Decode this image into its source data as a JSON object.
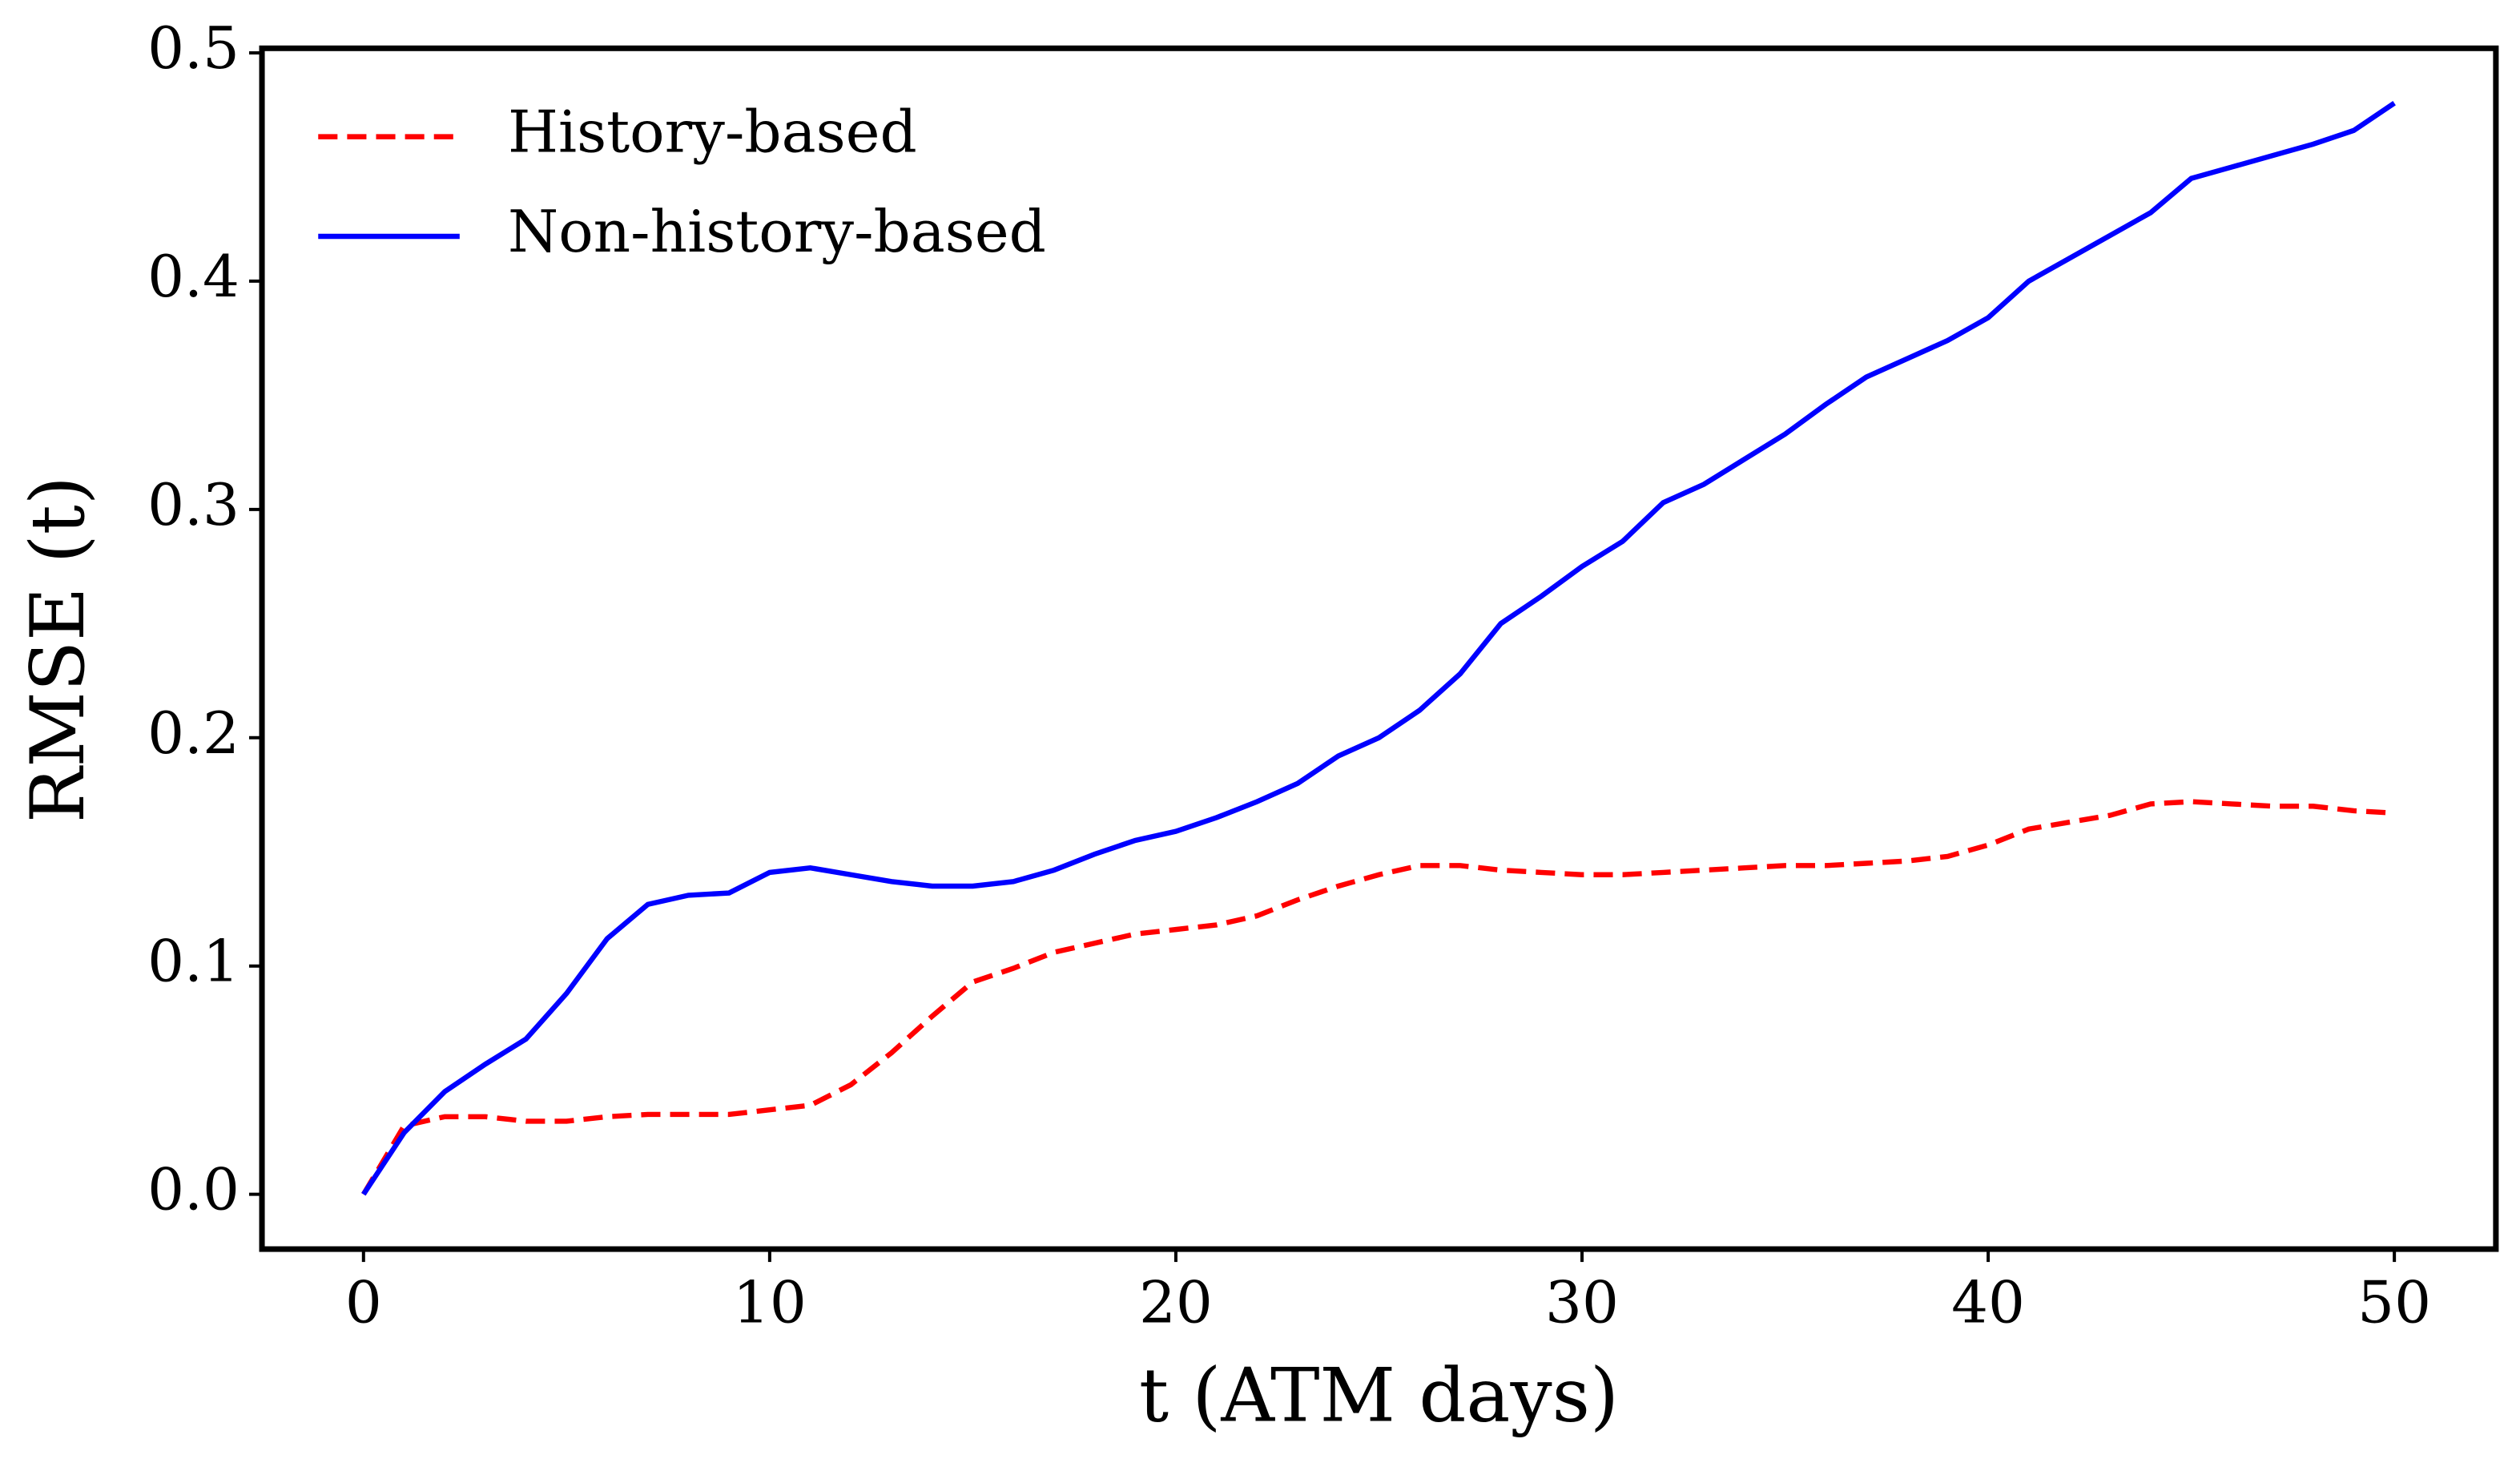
{
  "chart_data": {
    "type": "line",
    "xlabel": "t (ATM days)",
    "ylabel": "RMSE (t)",
    "x": [
      0,
      1,
      2,
      3,
      4,
      5,
      6,
      7,
      8,
      9,
      10,
      11,
      12,
      13,
      14,
      15,
      16,
      17,
      18,
      19,
      20,
      21,
      22,
      23,
      24,
      25,
      26,
      27,
      28,
      29,
      30,
      31,
      32,
      33,
      34,
      35,
      36,
      37,
      38,
      39,
      40,
      41,
      42,
      43,
      44,
      45,
      46,
      47,
      48,
      49,
      50
    ],
    "series": [
      {
        "name": "History-based",
        "color": "#ff0000",
        "dash": "dashed",
        "values": [
          0,
          0.03,
          0.034,
          0.034,
          0.032,
          0.032,
          0.034,
          0.035,
          0.035,
          0.035,
          0.037,
          0.039,
          0.048,
          0.062,
          0.078,
          0.093,
          0.099,
          0.106,
          0.11,
          0.114,
          0.116,
          0.118,
          0.122,
          0.129,
          0.135,
          0.14,
          0.144,
          0.144,
          0.142,
          0.141,
          0.14,
          0.14,
          0.141,
          0.142,
          0.143,
          0.144,
          0.144,
          0.145,
          0.146,
          0.148,
          0.153,
          0.16,
          0.163,
          0.166,
          0.171,
          0.172,
          0.171,
          0.17,
          0.17,
          0.168,
          0.167
        ]
      },
      {
        "name": "Non-history-based",
        "color": "#0000ff",
        "dash": "solid",
        "values": [
          0,
          0.027,
          0.045,
          0.057,
          0.068,
          0.088,
          0.112,
          0.127,
          0.131,
          0.132,
          0.141,
          0.143,
          0.14,
          0.137,
          0.135,
          0.135,
          0.137,
          0.142,
          0.149,
          0.155,
          0.159,
          0.165,
          0.172,
          0.18,
          0.192,
          0.2,
          0.212,
          0.228,
          0.25,
          0.262,
          0.275,
          0.286,
          0.303,
          0.311,
          0.322,
          0.333,
          0.346,
          0.358,
          0.366,
          0.374,
          0.384,
          0.4,
          0.41,
          0.42,
          0.43,
          0.445,
          0.45,
          0.455,
          0.46,
          0.466,
          0.478
        ]
      }
    ],
    "xlim": [
      -2.5,
      52.5
    ],
    "ylim": [
      -0.024,
      0.502
    ],
    "xticks": [
      0,
      10,
      20,
      30,
      40,
      50
    ],
    "yticks": [
      {
        "value": 0,
        "label": "0.0"
      },
      0.1,
      0.2,
      0.3,
      0.4,
      0.5
    ],
    "grid": false,
    "legend": "upper left"
  }
}
